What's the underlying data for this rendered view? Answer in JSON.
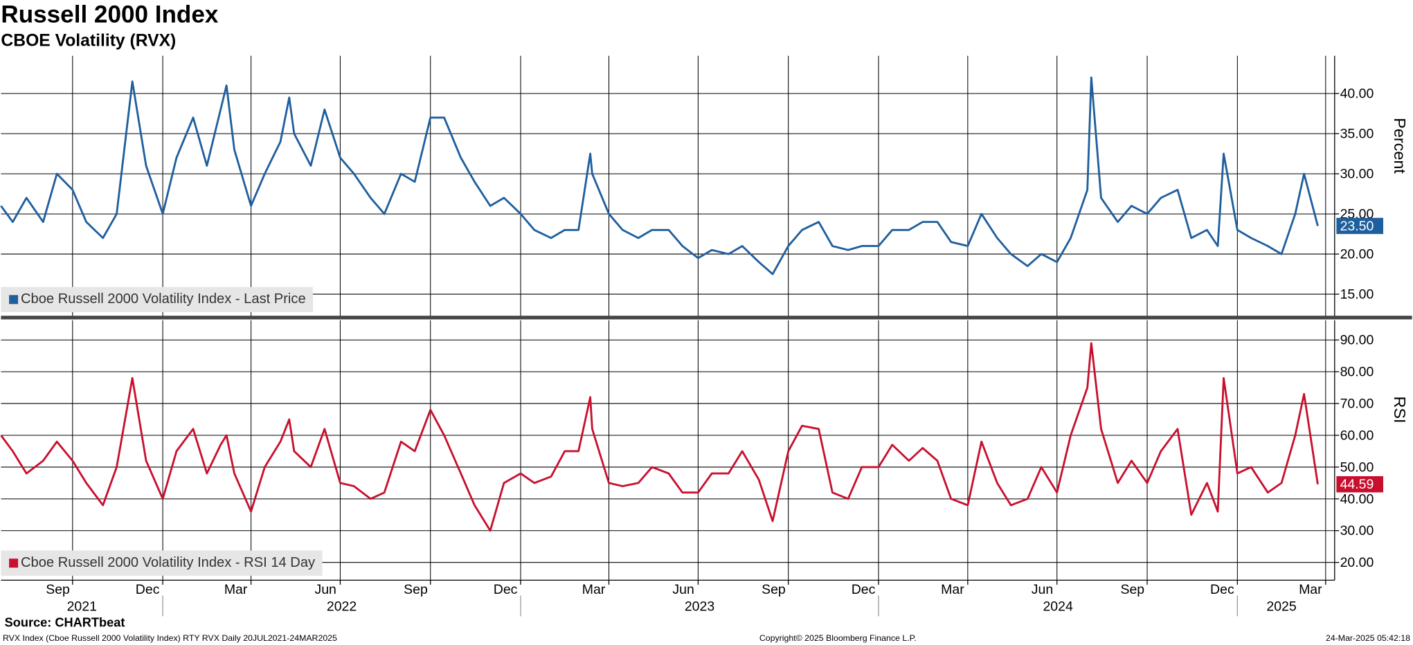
{
  "chart_data": [
    {
      "type": "line",
      "title": "Russell 2000 Index",
      "subtitle": "CBOE Volatility (RVX)",
      "y_label": "Percent",
      "grid": true,
      "xlim": [
        "2021-07-20",
        "2025-04-01"
      ],
      "x": [
        "2021-07-20",
        "2021-08-01",
        "2021-08-15",
        "2021-09-01",
        "2021-09-15",
        "2021-10-01",
        "2021-10-15",
        "2021-11-01",
        "2021-11-15",
        "2021-12-01",
        "2021-12-15",
        "2022-01-01",
        "2022-01-15",
        "2022-02-01",
        "2022-02-15",
        "2022-03-01",
        "2022-03-07",
        "2022-03-15",
        "2022-04-01",
        "2022-04-15",
        "2022-05-01",
        "2022-05-10",
        "2022-05-15",
        "2022-06-01",
        "2022-06-15",
        "2022-07-01",
        "2022-07-15",
        "2022-08-01",
        "2022-08-15",
        "2022-09-01",
        "2022-09-15",
        "2022-10-01",
        "2022-10-15",
        "2022-11-01",
        "2022-11-15",
        "2022-12-01",
        "2022-12-15",
        "2023-01-01",
        "2023-01-15",
        "2023-02-01",
        "2023-02-15",
        "2023-03-01",
        "2023-03-13",
        "2023-03-15",
        "2023-04-01",
        "2023-04-15",
        "2023-05-01",
        "2023-05-15",
        "2023-06-01",
        "2023-06-15",
        "2023-07-01",
        "2023-07-15",
        "2023-08-01",
        "2023-08-15",
        "2023-09-01",
        "2023-09-15",
        "2023-10-01",
        "2023-10-15",
        "2023-11-01",
        "2023-11-15",
        "2023-12-01",
        "2023-12-15",
        "2024-01-01",
        "2024-01-15",
        "2024-02-01",
        "2024-02-15",
        "2024-03-01",
        "2024-03-15",
        "2024-04-01",
        "2024-04-15",
        "2024-05-01",
        "2024-05-15",
        "2024-06-01",
        "2024-06-15",
        "2024-07-01",
        "2024-07-15",
        "2024-08-01",
        "2024-08-05",
        "2024-08-15",
        "2024-09-01",
        "2024-09-15",
        "2024-10-01",
        "2024-10-15",
        "2024-11-01",
        "2024-11-15",
        "2024-12-01",
        "2024-12-12",
        "2024-12-18",
        "2025-01-01",
        "2025-01-15",
        "2025-02-01",
        "2025-02-15",
        "2025-03-01",
        "2025-03-10",
        "2025-03-24"
      ],
      "series": [
        {
          "name": "Cboe Russell 2000 Volatility Index - Last Price",
          "color": "#1f5f9e",
          "last_value_label": "23.50",
          "values": [
            26,
            24,
            27,
            24,
            30,
            28,
            24,
            22,
            25,
            41.5,
            31,
            25,
            32,
            37,
            31,
            38,
            41,
            33,
            26,
            30,
            34,
            39.5,
            35,
            31,
            38,
            32,
            30,
            27,
            25,
            30,
            29,
            37,
            37,
            32,
            29,
            26,
            27,
            25,
            23,
            22,
            23,
            23,
            32.5,
            30,
            25,
            23,
            22,
            23,
            23,
            21,
            19.5,
            20.5,
            20,
            21,
            19,
            17.5,
            21,
            23,
            24,
            21,
            20.5,
            21,
            21,
            23,
            23,
            24,
            24,
            21.5,
            21,
            25,
            22,
            20,
            18.5,
            20,
            19,
            22,
            28,
            42,
            27,
            24,
            26,
            25,
            27,
            28,
            22,
            23,
            21,
            32.5,
            23,
            22,
            21,
            20,
            25,
            30,
            23.5
          ]
        }
      ],
      "ylim": [
        12.2,
        44.7
      ],
      "yticks": [
        {
          "value": 15,
          "label": "15.00"
        },
        {
          "value": 20,
          "label": "20.00"
        },
        {
          "value": 25,
          "label": "25.00"
        },
        {
          "value": 30,
          "label": "30.00"
        },
        {
          "value": 35,
          "label": "35.00"
        },
        {
          "value": 40,
          "label": "40.00"
        }
      ]
    },
    {
      "type": "line",
      "y_label": "RSI",
      "grid": true,
      "xlim": [
        "2021-07-20",
        "2025-04-01"
      ],
      "x": [
        "2021-07-20",
        "2021-08-01",
        "2021-08-15",
        "2021-09-01",
        "2021-09-15",
        "2021-10-01",
        "2021-10-15",
        "2021-11-01",
        "2021-11-15",
        "2021-12-01",
        "2021-12-15",
        "2022-01-01",
        "2022-01-15",
        "2022-02-01",
        "2022-02-15",
        "2022-03-01",
        "2022-03-07",
        "2022-03-15",
        "2022-04-01",
        "2022-04-15",
        "2022-05-01",
        "2022-05-10",
        "2022-05-15",
        "2022-06-01",
        "2022-06-15",
        "2022-07-01",
        "2022-07-15",
        "2022-08-01",
        "2022-08-15",
        "2022-09-01",
        "2022-09-15",
        "2022-10-01",
        "2022-10-15",
        "2022-11-01",
        "2022-11-15",
        "2022-12-01",
        "2022-12-15",
        "2023-01-01",
        "2023-01-15",
        "2023-02-01",
        "2023-02-15",
        "2023-03-01",
        "2023-03-13",
        "2023-03-15",
        "2023-04-01",
        "2023-04-15",
        "2023-05-01",
        "2023-05-15",
        "2023-06-01",
        "2023-06-15",
        "2023-07-01",
        "2023-07-15",
        "2023-08-01",
        "2023-08-15",
        "2023-09-01",
        "2023-09-15",
        "2023-10-01",
        "2023-10-15",
        "2023-11-01",
        "2023-11-15",
        "2023-12-01",
        "2023-12-15",
        "2024-01-01",
        "2024-01-15",
        "2024-02-01",
        "2024-02-15",
        "2024-03-01",
        "2024-03-15",
        "2024-04-01",
        "2024-04-15",
        "2024-05-01",
        "2024-05-15",
        "2024-06-01",
        "2024-06-15",
        "2024-07-01",
        "2024-07-15",
        "2024-08-01",
        "2024-08-05",
        "2024-08-15",
        "2024-09-01",
        "2024-09-15",
        "2024-10-01",
        "2024-10-15",
        "2024-11-01",
        "2024-11-15",
        "2024-12-01",
        "2024-12-12",
        "2024-12-18",
        "2025-01-01",
        "2025-01-15",
        "2025-02-01",
        "2025-02-15",
        "2025-03-01",
        "2025-03-10",
        "2025-03-24"
      ],
      "series": [
        {
          "name": "Cboe Russell 2000 Volatility Index - RSI 14 Day",
          "color": "#c8102e",
          "last_value_label": "44.59",
          "values": [
            60,
            55,
            48,
            52,
            58,
            52,
            45,
            38,
            50,
            78,
            52,
            40,
            55,
            62,
            48,
            57,
            60,
            48,
            36,
            50,
            58,
            65,
            55,
            50,
            62,
            45,
            44,
            40,
            42,
            58,
            55,
            68,
            60,
            48,
            38,
            30,
            45,
            48,
            45,
            47,
            55,
            55,
            72,
            62,
            45,
            44,
            45,
            50,
            48,
            42,
            42,
            48,
            48,
            55,
            46,
            33,
            55,
            63,
            62,
            42,
            40,
            50,
            50,
            57,
            52,
            56,
            52,
            40,
            38,
            58,
            45,
            38,
            40,
            50,
            42,
            60,
            75,
            89,
            62,
            45,
            52,
            45,
            55,
            62,
            35,
            45,
            36,
            78,
            48,
            50,
            42,
            45,
            60,
            73,
            44.59
          ]
        }
      ],
      "ylim": [
        14.4,
        96.2
      ],
      "yticks": [
        {
          "value": 20,
          "label": "20.00"
        },
        {
          "value": 30,
          "label": "30.00"
        },
        {
          "value": 40,
          "label": "40.00"
        },
        {
          "value": 50,
          "label": "50.00"
        },
        {
          "value": 60,
          "label": "60.00"
        },
        {
          "value": 70,
          "label": "70.00"
        },
        {
          "value": 80,
          "label": "80.00"
        },
        {
          "value": 90,
          "label": "90.00"
        }
      ],
      "xticks": [
        {
          "value": "2021-09",
          "label": "Sep"
        },
        {
          "value": "2021-12",
          "label": "Dec"
        },
        {
          "value": "2022-03",
          "label": "Mar"
        },
        {
          "value": "2022-06",
          "label": "Jun"
        },
        {
          "value": "2022-09",
          "label": "Sep"
        },
        {
          "value": "2022-12",
          "label": "Dec"
        },
        {
          "value": "2023-03",
          "label": "Mar"
        },
        {
          "value": "2023-06",
          "label": "Jun"
        },
        {
          "value": "2023-09",
          "label": "Sep"
        },
        {
          "value": "2023-12",
          "label": "Dec"
        },
        {
          "value": "2024-03",
          "label": "Mar"
        },
        {
          "value": "2024-06",
          "label": "Jun"
        },
        {
          "value": "2024-09",
          "label": "Sep"
        },
        {
          "value": "2024-12",
          "label": "Dec"
        },
        {
          "value": "2025-03",
          "label": "Mar"
        }
      ],
      "years": [
        "2021",
        "2022",
        "2023",
        "2024",
        "2025"
      ]
    }
  ],
  "source": "Source: CHARTbeat",
  "footer": {
    "left": "RVX Index (Cboe Russell 2000 Volatility Index) RTY RVX  Daily 20JUL2021-24MAR2025",
    "center": "Copyright© 2025 Bloomberg Finance L.P.",
    "right": "24-Mar-2025 05:42:18"
  }
}
